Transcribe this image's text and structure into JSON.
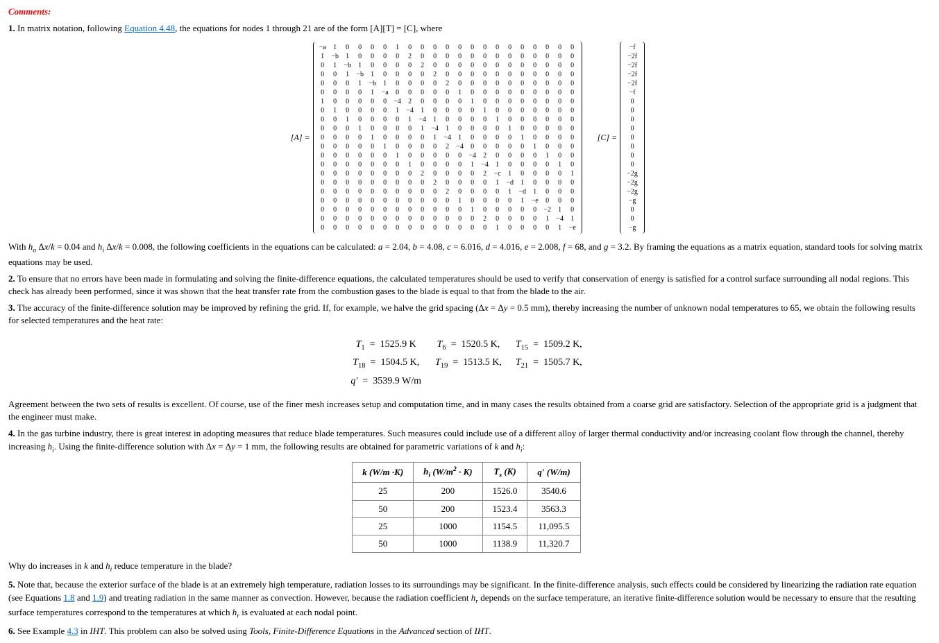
{
  "header": "Comments:",
  "p1_prefix": "1.",
  "p1_text_a": " In matrix notation, following ",
  "p1_link": "Equation 4.48",
  "p1_text_b": ", the equations for nodes 1 through 21 are of the form [A][T] = [C], where",
  "matA_label": "[A] =",
  "matC_label": "[C] =",
  "matrixA": [
    [
      "−a",
      "1",
      "0",
      "0",
      "0",
      "0",
      "1",
      "0",
      "0",
      "0",
      "0",
      "0",
      "0",
      "0",
      "0",
      "0",
      "0",
      "0",
      "0",
      "0",
      "0"
    ],
    [
      "1",
      "−b",
      "1",
      "0",
      "0",
      "0",
      "0",
      "2",
      "0",
      "0",
      "0",
      "0",
      "0",
      "0",
      "0",
      "0",
      "0",
      "0",
      "0",
      "0",
      "0"
    ],
    [
      "0",
      "1",
      "−b",
      "1",
      "0",
      "0",
      "0",
      "0",
      "2",
      "0",
      "0",
      "0",
      "0",
      "0",
      "0",
      "0",
      "0",
      "0",
      "0",
      "0",
      "0"
    ],
    [
      "0",
      "0",
      "1",
      "−b",
      "1",
      "0",
      "0",
      "0",
      "0",
      "2",
      "0",
      "0",
      "0",
      "0",
      "0",
      "0",
      "0",
      "0",
      "0",
      "0",
      "0"
    ],
    [
      "0",
      "0",
      "0",
      "1",
      "−b",
      "1",
      "0",
      "0",
      "0",
      "0",
      "2",
      "0",
      "0",
      "0",
      "0",
      "0",
      "0",
      "0",
      "0",
      "0",
      "0"
    ],
    [
      "0",
      "0",
      "0",
      "0",
      "1",
      "−a",
      "0",
      "0",
      "0",
      "0",
      "0",
      "1",
      "0",
      "0",
      "0",
      "0",
      "0",
      "0",
      "0",
      "0",
      "0"
    ],
    [
      "1",
      "0",
      "0",
      "0",
      "0",
      "0",
      "−4",
      "2",
      "0",
      "0",
      "0",
      "0",
      "1",
      "0",
      "0",
      "0",
      "0",
      "0",
      "0",
      "0",
      "0"
    ],
    [
      "0",
      "1",
      "0",
      "0",
      "0",
      "0",
      "1",
      "−4",
      "1",
      "0",
      "0",
      "0",
      "0",
      "1",
      "0",
      "0",
      "0",
      "0",
      "0",
      "0",
      "0"
    ],
    [
      "0",
      "0",
      "1",
      "0",
      "0",
      "0",
      "0",
      "1",
      "−4",
      "1",
      "0",
      "0",
      "0",
      "0",
      "1",
      "0",
      "0",
      "0",
      "0",
      "0",
      "0"
    ],
    [
      "0",
      "0",
      "0",
      "1",
      "0",
      "0",
      "0",
      "0",
      "1",
      "−4",
      "1",
      "0",
      "0",
      "0",
      "0",
      "1",
      "0",
      "0",
      "0",
      "0",
      "0"
    ],
    [
      "0",
      "0",
      "0",
      "0",
      "1",
      "0",
      "0",
      "0",
      "0",
      "1",
      "−4",
      "1",
      "0",
      "0",
      "0",
      "0",
      "1",
      "0",
      "0",
      "0",
      "0"
    ],
    [
      "0",
      "0",
      "0",
      "0",
      "0",
      "1",
      "0",
      "0",
      "0",
      "0",
      "2",
      "−4",
      "0",
      "0",
      "0",
      "0",
      "0",
      "1",
      "0",
      "0",
      "0"
    ],
    [
      "0",
      "0",
      "0",
      "0",
      "0",
      "0",
      "1",
      "0",
      "0",
      "0",
      "0",
      "0",
      "−4",
      "2",
      "0",
      "0",
      "0",
      "0",
      "1",
      "0",
      "0"
    ],
    [
      "0",
      "0",
      "0",
      "0",
      "0",
      "0",
      "0",
      "1",
      "0",
      "0",
      "0",
      "0",
      "1",
      "−4",
      "1",
      "0",
      "0",
      "0",
      "0",
      "1",
      "0"
    ],
    [
      "0",
      "0",
      "0",
      "0",
      "0",
      "0",
      "0",
      "0",
      "2",
      "0",
      "0",
      "0",
      "0",
      "2",
      "−c",
      "1",
      "0",
      "0",
      "0",
      "0",
      "1"
    ],
    [
      "0",
      "0",
      "0",
      "0",
      "0",
      "0",
      "0",
      "0",
      "0",
      "2",
      "0",
      "0",
      "0",
      "0",
      "1",
      "−d",
      "1",
      "0",
      "0",
      "0",
      "0"
    ],
    [
      "0",
      "0",
      "0",
      "0",
      "0",
      "0",
      "0",
      "0",
      "0",
      "0",
      "2",
      "0",
      "0",
      "0",
      "0",
      "1",
      "−d",
      "1",
      "0",
      "0",
      "0"
    ],
    [
      "0",
      "0",
      "0",
      "0",
      "0",
      "0",
      "0",
      "0",
      "0",
      "0",
      "0",
      "1",
      "0",
      "0",
      "0",
      "0",
      "1",
      "−e",
      "0",
      "0",
      "0"
    ],
    [
      "0",
      "0",
      "0",
      "0",
      "0",
      "0",
      "0",
      "0",
      "0",
      "0",
      "0",
      "0",
      "1",
      "0",
      "0",
      "0",
      "0",
      "0",
      "−2",
      "1",
      "0"
    ],
    [
      "0",
      "0",
      "0",
      "0",
      "0",
      "0",
      "0",
      "0",
      "0",
      "0",
      "0",
      "0",
      "0",
      "2",
      "0",
      "0",
      "0",
      "0",
      "1",
      "−4",
      "1"
    ],
    [
      "0",
      "0",
      "0",
      "0",
      "0",
      "0",
      "0",
      "0",
      "0",
      "0",
      "0",
      "0",
      "0",
      "0",
      "1",
      "0",
      "0",
      "0",
      "0",
      "1",
      "−e"
    ]
  ],
  "matrixC": [
    "−f",
    "−2f",
    "−2f",
    "−2f",
    "−2f",
    "−f",
    "0",
    "0",
    "0",
    "0",
    "0",
    "0",
    "0",
    "0",
    "−2g",
    "−2g",
    "−2g",
    "−g",
    "0",
    "0",
    "−g"
  ],
  "p1_coeffs": "With h_o Δx/k = 0.04 and h_i Δx/k = 0.008, the following coefficients in the equations can be calculated: a = 2.04, b = 4.08, c = 6.016, d = 4.016, e = 2.008, f = 68, and g = 3.2. By framing the equations as a matrix equation, standard tools for solving matrix equations may be used.",
  "p2_prefix": "2.",
  "p2_text": " To ensure that no errors have been made in formulating and solving the finite-difference equations, the calculated temperatures should be used to verify that conservation of energy is satisfied for a control surface surrounding all nodal regions. This check has already been performed, since it was shown that the heat transfer rate from the combustion gases to the blade is equal to that from the blade to the air.",
  "p3_prefix": "3.",
  "p3_text": " The accuracy of the finite-difference solution may be improved by refining the grid. If, for example, we halve the grid spacing (Δx = Δy = 0.5 mm), thereby increasing the number of unknown nodal temperatures to 65, we obtain the following results for selected temperatures and the heat rate:",
  "results": {
    "r1": {
      "a": "T₁",
      "av": "1525.9 K",
      "b": "T₆",
      "bv": "1520.5 K,",
      "c": "T₁₅",
      "cv": "1509.2 K,"
    },
    "r2": {
      "a": "T₁₈",
      "av": "1504.5 K,",
      "b": "T₁₉",
      "bv": "1513.5 K,",
      "c": "T₂₁",
      "cv": "1505.7 K,"
    },
    "r3": {
      "a": "q′",
      "av": "3539.9 W/m"
    }
  },
  "p3b": "Agreement between the two sets of results is excellent. Of course, use of the finer mesh increases setup and computation time, and in many cases the results obtained from a coarse grid are satisfactory. Selection of the appropriate grid is a judgment that the engineer must make.",
  "p4_prefix": "4.",
  "p4_text": " In the gas turbine industry, there is great interest in adopting measures that reduce blade temperatures. Such measures could include use of a different alloy of larger thermal conductivity and/or increasing coolant flow through the channel, thereby increasing h_i. Using the finite-difference solution with Δx = Δy = 1 mm, the following results are obtained for parametric variations of k and h_i:",
  "table_headers": [
    "k (W/m ·K)",
    "h_i (W/m² · K)",
    "T_s (K)",
    "q′ (W/m)"
  ],
  "table_rows": [
    [
      "25",
      "200",
      "1526.0",
      "3540.6"
    ],
    [
      "50",
      "200",
      "1523.4",
      "3563.3"
    ],
    [
      "25",
      "1000",
      "1154.5",
      "11,095.5"
    ],
    [
      "50",
      "1000",
      "1138.9",
      "11,320.7"
    ]
  ],
  "p4b": "Why do increases in k and h_i reduce temperature in the blade?",
  "p5_prefix": "5.",
  "p5_text_a": " Note that, because the exterior surface of the blade is at an extremely high temperature, radiation losses to its surroundings may be significant. In the finite-difference analysis, such effects could be considered by linearizing the radiation rate equation (see Equations ",
  "p5_link1": "1.8",
  "p5_mid": " and ",
  "p5_link2": "1.9",
  "p5_text_b": ") and treating radiation in the same manner as convection. However, because the radiation coefficient h_r depends on the surface temperature, an iterative finite-difference solution would be necessary to ensure that the resulting surface temperatures correspond to the temperatures at which h_r is evaluated at each nodal point.",
  "p6_prefix": "6.",
  "p6_text_a": " See Example ",
  "p6_link": "4.3",
  "p6_text_b": " in IHT. This problem can also be solved using Tools, Finite-Difference Equations in the Advanced section of IHT."
}
